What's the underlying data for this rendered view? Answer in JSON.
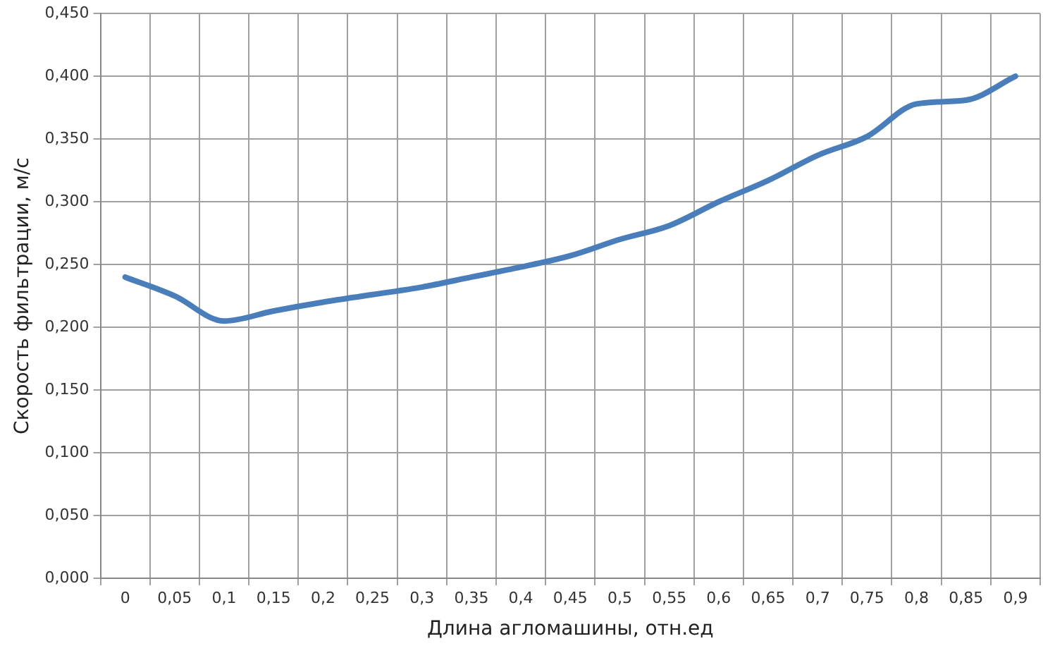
{
  "chart_data": {
    "type": "line",
    "xlabel": "Длина агломашины, отн.ед",
    "ylabel": "Скорость фильтрации, м/с",
    "categories": [
      "0",
      "0,05",
      "0,1",
      "0,15",
      "0,2",
      "0,25",
      "0,3",
      "0,35",
      "0,4",
      "0,45",
      "0,5",
      "0,55",
      "0,6",
      "0,65",
      "0,7",
      "0,75",
      "0,8",
      "0,85",
      "0,9"
    ],
    "series": [
      {
        "color": "#4a7ebb",
        "values": [
          0.24,
          0.225,
          0.205,
          0.213,
          0.22,
          0.226,
          0.232,
          0.24,
          0.248,
          0.257,
          0.27,
          0.281,
          0.3,
          0.317,
          0.337,
          0.352,
          0.378,
          0.381,
          0.4
        ]
      }
    ],
    "ylim": [
      0,
      0.45
    ],
    "yticks": [
      {
        "value": 0,
        "label": "0,000"
      },
      {
        "value": 0.05,
        "label": "0,050"
      },
      {
        "value": 0.1,
        "label": "0,100"
      },
      {
        "value": 0.15,
        "label": "0,150"
      },
      {
        "value": 0.2,
        "label": "0,200"
      },
      {
        "value": 0.25,
        "label": "0,250"
      },
      {
        "value": 0.3,
        "label": "0,300"
      },
      {
        "value": 0.35,
        "label": "0,350"
      },
      {
        "value": 0.4,
        "label": "0,400"
      },
      {
        "value": 0.45,
        "label": "0,450"
      }
    ],
    "grid": true,
    "legend": false,
    "marker": "none",
    "line_style": "solid"
  }
}
